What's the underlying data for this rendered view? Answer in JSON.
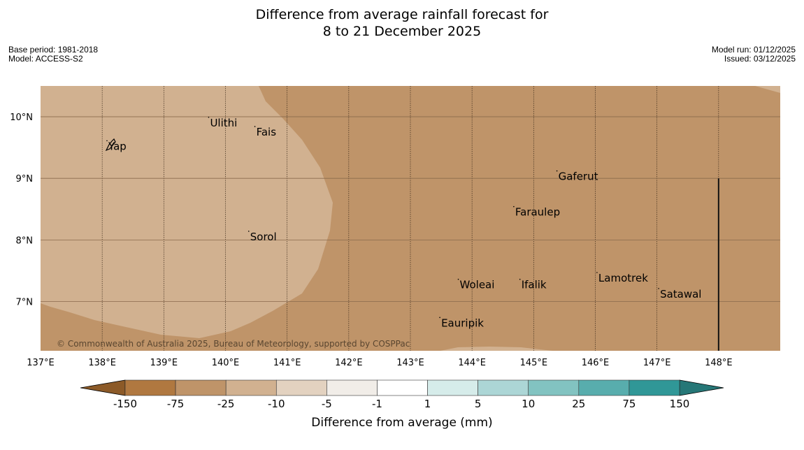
{
  "title": {
    "line1": "Difference from average rainfall forecast for",
    "line2": "8 to 21 December 2025"
  },
  "meta_left": {
    "base_period": "Base period: 1981-2018",
    "model": "Model: ACCESS-S2"
  },
  "meta_right": {
    "model_run": "Model run: 01/12/2025",
    "issued": "Issued: 03/12/2025"
  },
  "map": {
    "lon_range": [
      137,
      149
    ],
    "lat_range": [
      6.2,
      10.5
    ],
    "lon_ticks": [
      {
        "value": 137,
        "label": "137°E"
      },
      {
        "value": 138,
        "label": "138°E"
      },
      {
        "value": 139,
        "label": "139°E"
      },
      {
        "value": 140,
        "label": "140°E"
      },
      {
        "value": 141,
        "label": "141°E"
      },
      {
        "value": 142,
        "label": "142°E"
      },
      {
        "value": 143,
        "label": "143°E"
      },
      {
        "value": 144,
        "label": "144°E"
      },
      {
        "value": 145,
        "label": "145°E"
      },
      {
        "value": 146,
        "label": "146°E"
      },
      {
        "value": 147,
        "label": "147°E"
      },
      {
        "value": 148,
        "label": "148°E"
      }
    ],
    "lat_ticks": [
      {
        "value": 10,
        "label": "10°N"
      },
      {
        "value": 9,
        "label": "9°N"
      },
      {
        "value": 8,
        "label": "8°N"
      },
      {
        "value": 7,
        "label": "7°N"
      }
    ],
    "places": [
      {
        "name": "Ulithi",
        "lon": 139.75,
        "lat": 9.9
      },
      {
        "name": "Fais",
        "lon": 140.5,
        "lat": 9.75
      },
      {
        "name": "Yap",
        "lon": 138.1,
        "lat": 9.52
      },
      {
        "name": "Gaferut",
        "lon": 145.4,
        "lat": 9.03
      },
      {
        "name": "Faraulep",
        "lon": 144.7,
        "lat": 8.45
      },
      {
        "name": "Sorol",
        "lon": 140.4,
        "lat": 8.05
      },
      {
        "name": "Lamotrek",
        "lon": 146.05,
        "lat": 7.38
      },
      {
        "name": "Woleai",
        "lon": 143.8,
        "lat": 7.27
      },
      {
        "name": "Ifalik",
        "lon": 144.8,
        "lat": 7.27
      },
      {
        "name": "Satawal",
        "lon": 147.05,
        "lat": 7.12
      },
      {
        "name": "Eauripik",
        "lon": 143.5,
        "lat": 6.65
      }
    ],
    "boundary_lon": 148,
    "boundary_lat_range": [
      6.2,
      9.0
    ],
    "background_color": "#bf9469",
    "lighter_region_color": "#d1b190",
    "copyright": "© Commonwealth of Australia 2025, Bureau of Meteorology, supported by COSPPac"
  },
  "colorbar": {
    "title": "Difference from average (mm)",
    "ticks": [
      "-150",
      "-75",
      "-25",
      "-10",
      "-5",
      "-1",
      "1",
      "5",
      "10",
      "25",
      "75",
      "150"
    ],
    "low_extend_color": "#8c5a28",
    "high_extend_color": "#267777",
    "colors": [
      "#b07840",
      "#bf9469",
      "#d1b190",
      "#e3d2c0",
      "#f1ede8",
      "#ffffff",
      "#d6ecea",
      "#acd6d6",
      "#82c3c1",
      "#58adad",
      "#309797"
    ]
  }
}
